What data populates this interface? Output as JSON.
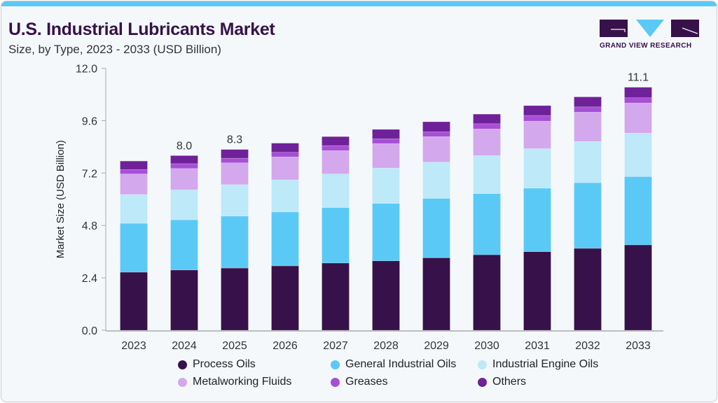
{
  "header": {
    "title": "U.S. Industrial Lubricants Market",
    "subtitle": "Size, by Type, 2023 - 2033 (USD Billion)",
    "logo_text": "GRAND VIEW RESEARCH"
  },
  "chart_data": {
    "type": "bar",
    "stacked": true,
    "title": "U.S. Industrial Lubricants Market",
    "subtitle": "Size, by Type, 2023 - 2033 (USD Billion)",
    "xlabel": "",
    "ylabel": "Market Size (USD Billion)",
    "ylim": [
      0,
      12
    ],
    "yticks": [
      "0.0",
      "2.4",
      "4.8",
      "7.2",
      "9.6",
      "12.0"
    ],
    "grid": false,
    "legend_position": "bottom",
    "categories": [
      "2023",
      "2024",
      "2025",
      "2026",
      "2027",
      "2028",
      "2029",
      "2030",
      "2031",
      "2032",
      "2033"
    ],
    "series": [
      {
        "name": "Process Oils",
        "color": "#371149",
        "values": [
          2.66,
          2.76,
          2.85,
          2.95,
          3.08,
          3.18,
          3.32,
          3.46,
          3.6,
          3.75,
          3.91
        ]
      },
      {
        "name": "General Industrial Oils",
        "color": "#5BC9F5",
        "values": [
          2.24,
          2.3,
          2.38,
          2.47,
          2.54,
          2.63,
          2.72,
          2.8,
          2.91,
          3.01,
          3.13
        ]
      },
      {
        "name": "Industrial Engine Oils",
        "color": "#BDE9F9",
        "values": [
          1.32,
          1.37,
          1.44,
          1.47,
          1.54,
          1.62,
          1.66,
          1.74,
          1.81,
          1.89,
          1.99
        ]
      },
      {
        "name": "Metalworking Fluids",
        "color": "#D3A8EC",
        "values": [
          0.94,
          0.98,
          1.0,
          1.05,
          1.07,
          1.12,
          1.17,
          1.22,
          1.26,
          1.34,
          1.38
        ]
      },
      {
        "name": "Greases",
        "color": "#A64FD6",
        "values": [
          0.2,
          0.22,
          0.21,
          0.21,
          0.23,
          0.22,
          0.22,
          0.24,
          0.26,
          0.24,
          0.24
        ]
      },
      {
        "name": "Others",
        "color": "#6F2199",
        "values": [
          0.39,
          0.37,
          0.4,
          0.42,
          0.41,
          0.43,
          0.46,
          0.44,
          0.45,
          0.46,
          0.48
        ]
      }
    ],
    "data_labels": [
      {
        "category": "2024",
        "text": "8.0"
      },
      {
        "category": "2025",
        "text": "8.3"
      },
      {
        "category": "2033",
        "text": "11.1"
      }
    ]
  },
  "legend_order": [
    0,
    3,
    1,
    4,
    2,
    5
  ]
}
